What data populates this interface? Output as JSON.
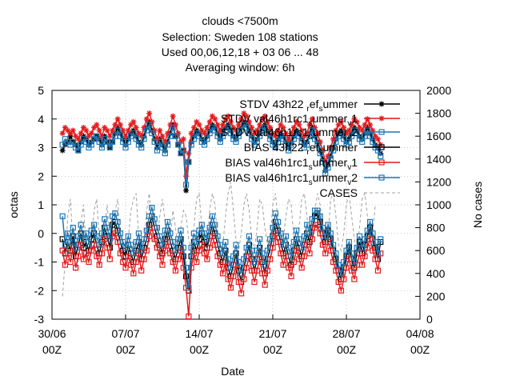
{
  "chart_data": {
    "type": "line",
    "title_lines": [
      "clouds <7500m",
      "Selection: Sweden    108 stations",
      "Used  00,06,12,18  + 03 06 ... 48",
      "Averaging window:  6h"
    ],
    "xlabel": "Date",
    "ylabel": "octas",
    "y2label": "No cases",
    "xlim": [
      "2014-06-30T00",
      "2014-08-04T00"
    ],
    "ylim": [
      -3,
      5
    ],
    "y2lim": [
      0,
      2000
    ],
    "x_ticks": [
      {
        "line1": "30/06",
        "line2": "00Z"
      },
      {
        "line1": "07/07",
        "line2": "00Z"
      },
      {
        "line1": "14/07",
        "line2": "00Z"
      },
      {
        "line1": "21/07",
        "line2": "00Z"
      },
      {
        "line1": "28/07",
        "line2": "00Z"
      },
      {
        "line1": "04/08",
        "line2": "00Z"
      }
    ],
    "y_ticks": [
      "-3",
      "-2",
      "-1",
      "0",
      "1",
      "2",
      "3",
      "4",
      "5"
    ],
    "y2_ticks": [
      "0",
      "200",
      "400",
      "600",
      "800",
      "1000",
      "1200",
      "1400",
      "1600",
      "1800",
      "2000"
    ],
    "grid": true,
    "legend_position": "top-right",
    "x_days": [
      1.0,
      1.25,
      1.5,
      1.75,
      2.0,
      2.25,
      2.5,
      2.75,
      3.0,
      3.25,
      3.5,
      3.75,
      4.0,
      4.25,
      4.5,
      4.75,
      5.0,
      5.25,
      5.5,
      5.75,
      6.0,
      6.25,
      6.5,
      6.75,
      7.0,
      7.25,
      7.5,
      7.75,
      8.0,
      8.25,
      8.5,
      8.75,
      9.0,
      9.25,
      9.5,
      9.75,
      10.0,
      10.25,
      10.5,
      10.75,
      11.0,
      11.25,
      11.5,
      11.75,
      12.0,
      12.25,
      12.5,
      12.75,
      13.0,
      13.25,
      13.5,
      13.75,
      14.0,
      14.25,
      14.5,
      14.75,
      15.0,
      15.25,
      15.5,
      15.75,
      16.0,
      16.25,
      16.5,
      16.75,
      17.0,
      17.25,
      17.5,
      17.75,
      18.0,
      18.25,
      18.5,
      18.75,
      19.0,
      19.25,
      19.5,
      19.75,
      20.0,
      20.25,
      20.5,
      20.75,
      21.0,
      21.25,
      21.5,
      21.75,
      22.0,
      22.25,
      22.5,
      22.75,
      23.0,
      23.25,
      23.5,
      23.75,
      24.0,
      24.25,
      24.5,
      24.75,
      25.0,
      25.25,
      25.5,
      25.75,
      26.0,
      26.25,
      26.5,
      26.75,
      27.0,
      27.25,
      27.5,
      27.75,
      28.0,
      28.25,
      28.5,
      28.75,
      29.0,
      29.25,
      29.5,
      29.75,
      30.0,
      30.25,
      30.5,
      30.75,
      31.0,
      31.25,
      31.5,
      31.75
    ],
    "series": [
      {
        "name": "STDV 43h22 ref_summer",
        "axis": "y1",
        "color": "#000000",
        "marker": "star",
        "dash": false,
        "values": [
          2.9,
          3.1,
          3.2,
          3.4,
          3.2,
          3.1,
          2.9,
          3.2,
          3.4,
          3.3,
          3.1,
          3.2,
          3.3,
          3.4,
          3.3,
          3.1,
          3.4,
          3.2,
          3.0,
          3.2,
          3.5,
          3.7,
          3.5,
          3.3,
          3.1,
          3.3,
          3.5,
          3.6,
          3.4,
          3.2,
          3.1,
          3.4,
          3.7,
          3.9,
          3.6,
          3.3,
          3.0,
          3.3,
          3.1,
          2.9,
          3.2,
          3.5,
          3.8,
          3.4,
          3.1,
          2.8,
          2.9,
          1.5,
          2.5,
          3.2,
          3.4,
          3.6,
          3.5,
          3.3,
          3.2,
          3.4,
          3.6,
          3.8,
          3.7,
          3.5,
          3.3,
          3.5,
          3.7,
          3.8,
          3.6,
          3.4,
          3.3,
          3.5,
          3.7,
          3.9,
          3.8,
          3.6,
          3.4,
          3.2,
          3.3,
          3.5,
          3.7,
          3.8,
          3.6,
          3.4,
          3.2,
          3.1,
          3.3,
          3.5,
          3.4,
          3.2,
          3.0,
          3.2,
          3.4,
          3.6,
          3.5,
          3.3,
          3.1,
          3.2,
          3.5,
          3.7,
          3.4,
          3.2,
          2.9,
          2.6,
          2.2,
          2.4,
          2.7,
          3.0,
          3.3,
          3.5,
          3.6,
          3.4,
          3.2,
          3.3,
          3.5,
          3.7,
          3.6,
          3.4,
          3.3,
          3.5,
          3.7,
          3.5,
          3.3,
          3.1,
          3.0,
          2.8
        ]
      },
      {
        "name": "STDV val46h1rc1_summer_1",
        "axis": "y1",
        "color": "#e41a1c",
        "marker": "star",
        "dash": false,
        "values": [
          3.5,
          3.7,
          3.6,
          3.5,
          3.6,
          3.4,
          3.3,
          3.5,
          3.7,
          3.6,
          3.4,
          3.5,
          3.7,
          3.8,
          3.6,
          3.4,
          3.7,
          3.6,
          3.4,
          3.6,
          3.8,
          4.0,
          3.8,
          3.6,
          3.4,
          3.6,
          3.8,
          3.9,
          3.7,
          3.5,
          3.4,
          3.7,
          4.0,
          4.2,
          3.9,
          3.6,
          3.3,
          3.6,
          3.4,
          3.2,
          3.5,
          3.8,
          4.1,
          3.8,
          3.5,
          3.2,
          3.3,
          2.0,
          2.8,
          3.5,
          3.7,
          3.9,
          3.8,
          3.6,
          3.5,
          3.7,
          3.9,
          4.1,
          4.0,
          3.8,
          3.6,
          3.8,
          4.0,
          4.1,
          3.9,
          3.7,
          3.6,
          3.8,
          4.0,
          4.2,
          4.1,
          3.9,
          3.7,
          3.5,
          3.6,
          3.8,
          4.0,
          4.1,
          3.9,
          3.7,
          3.5,
          3.4,
          3.6,
          3.8,
          3.7,
          3.5,
          3.3,
          3.5,
          3.7,
          3.9,
          3.8,
          3.6,
          3.4,
          3.5,
          3.8,
          4.0,
          3.7,
          3.5,
          3.2,
          2.9,
          2.5,
          2.7,
          3.0,
          3.3,
          3.6,
          3.8,
          3.9,
          3.7,
          3.5,
          3.6,
          3.8,
          4.0,
          3.9,
          3.7,
          3.6,
          3.8,
          4.0,
          3.8,
          3.6,
          3.4,
          3.3,
          3.1
        ]
      },
      {
        "name": "STDV val46h1rc1_summer_2",
        "axis": "y1",
        "color": "#1f77b4",
        "marker": "square",
        "dash": false,
        "values": [
          3.1,
          3.3,
          3.2,
          3.1,
          3.2,
          3.0,
          2.9,
          3.1,
          3.3,
          3.2,
          3.0,
          3.1,
          3.3,
          3.4,
          3.2,
          3.0,
          3.3,
          3.2,
          3.0,
          3.2,
          3.4,
          3.6,
          3.4,
          3.2,
          3.0,
          3.2,
          3.4,
          3.5,
          3.3,
          3.1,
          3.0,
          3.3,
          3.6,
          3.8,
          3.5,
          3.2,
          2.9,
          3.2,
          3.0,
          2.8,
          3.1,
          3.4,
          3.7,
          3.4,
          3.1,
          2.8,
          2.9,
          1.7,
          2.5,
          3.1,
          3.3,
          3.5,
          3.4,
          3.2,
          3.1,
          3.3,
          3.5,
          3.7,
          3.6,
          3.4,
          3.2,
          3.4,
          3.6,
          3.7,
          3.5,
          3.3,
          3.2,
          3.4,
          3.6,
          3.8,
          3.7,
          3.5,
          3.3,
          3.1,
          3.2,
          3.4,
          3.6,
          3.7,
          3.5,
          3.3,
          3.1,
          3.0,
          3.2,
          3.4,
          3.3,
          3.1,
          2.9,
          3.1,
          3.3,
          3.5,
          3.4,
          3.2,
          3.0,
          3.1,
          3.4,
          3.6,
          3.3,
          3.1,
          2.8,
          2.5,
          2.1,
          2.3,
          2.6,
          2.9,
          3.2,
          3.4,
          3.5,
          3.3,
          3.1,
          3.2,
          3.4,
          3.6,
          3.5,
          3.3,
          3.2,
          3.4,
          3.6,
          3.4,
          3.2,
          3.0,
          2.9,
          2.7
        ]
      },
      {
        "name": "BIAS 43h22 ref_summer",
        "axis": "y1",
        "color": "#000000",
        "marker": "square",
        "dash": false,
        "values": [
          -0.2,
          -0.7,
          -0.3,
          -0.6,
          -0.1,
          -0.8,
          -0.4,
          0.0,
          -0.5,
          -0.3,
          -0.6,
          -0.2,
          0.0,
          -0.4,
          -0.7,
          -0.3,
          0.2,
          -0.1,
          -0.5,
          0.3,
          0.4,
          0.1,
          -0.3,
          -0.6,
          -0.8,
          -0.4,
          -0.7,
          -1.0,
          -0.6,
          -0.3,
          -0.9,
          -0.5,
          -0.2,
          0.3,
          0.6,
          0.2,
          -0.1,
          -0.4,
          -0.7,
          -0.2,
          0.1,
          -0.3,
          -0.6,
          -0.9,
          -0.5,
          -0.2,
          -0.8,
          -1.5,
          -2.0,
          -0.8,
          -0.3,
          -0.6,
          -0.2,
          0.0,
          -0.3,
          -0.5,
          -0.1,
          0.3,
          0.0,
          -0.4,
          -0.7,
          -1.0,
          -0.6,
          -1.2,
          -1.5,
          -1.1,
          -0.7,
          -1.3,
          -1.7,
          -1.2,
          -0.8,
          -0.4,
          -0.9,
          -1.3,
          -0.9,
          -0.5,
          -1.0,
          -1.4,
          -0.9,
          -0.5,
          -0.1,
          0.4,
          0.1,
          -0.3,
          -0.7,
          -0.4,
          -0.8,
          -1.1,
          -0.6,
          -0.2,
          -0.5,
          -0.8,
          -0.4,
          0.0,
          -0.3,
          0.2,
          0.6,
          0.7,
          0.4,
          0.0,
          -0.3,
          0.1,
          -0.2,
          -0.6,
          -0.9,
          -1.3,
          -1.6,
          -1.2,
          -0.8,
          -0.5,
          -0.9,
          -1.2,
          -0.7,
          -0.3,
          -0.7,
          -0.4,
          -0.1,
          0.2,
          -0.2,
          -0.5,
          -0.9,
          -0.3
        ]
      },
      {
        "name": "BIAS val46h1rc1_summer_1",
        "axis": "y1",
        "color": "#e41a1c",
        "marker": "square",
        "dash": false,
        "values": [
          -0.6,
          -1.1,
          -0.7,
          -1.0,
          -0.5,
          -1.2,
          -0.8,
          -0.4,
          -0.9,
          -0.7,
          -1.0,
          -0.6,
          -0.4,
          -0.8,
          -1.1,
          -0.7,
          -0.2,
          -0.5,
          -0.9,
          -0.1,
          0.0,
          -0.3,
          -0.7,
          -1.0,
          -1.2,
          -0.8,
          -1.1,
          -1.4,
          -1.0,
          -0.7,
          -1.3,
          -0.9,
          -0.6,
          -0.1,
          0.2,
          -0.2,
          -0.5,
          -0.8,
          -1.1,
          -0.6,
          -0.3,
          -0.7,
          -1.0,
          -1.3,
          -0.9,
          -0.6,
          -1.2,
          -1.9,
          -2.9,
          -1.2,
          -0.7,
          -1.0,
          -0.6,
          -0.4,
          -0.7,
          -0.9,
          -0.5,
          -0.1,
          -0.4,
          -0.8,
          -1.1,
          -1.4,
          -1.0,
          -1.6,
          -1.9,
          -1.5,
          -1.1,
          -1.7,
          -2.1,
          -1.6,
          -1.2,
          -0.8,
          -1.3,
          -1.7,
          -1.3,
          -0.9,
          -1.4,
          -1.8,
          -1.3,
          -0.9,
          -0.5,
          0.0,
          -0.3,
          -0.7,
          -1.1,
          -0.8,
          -1.2,
          -1.5,
          -1.0,
          -0.6,
          -0.9,
          -1.2,
          -0.8,
          -0.4,
          -0.7,
          -0.2,
          0.2,
          0.3,
          0.0,
          -0.4,
          -0.7,
          -0.3,
          -0.6,
          -1.0,
          -1.3,
          -1.7,
          -2.0,
          -1.6,
          -1.2,
          -0.9,
          -1.3,
          -1.6,
          -1.1,
          -0.7,
          -1.1,
          -0.8,
          -0.5,
          -0.2,
          -0.6,
          -0.9,
          -1.3,
          -0.7
        ]
      },
      {
        "name": "BIAS val46h1rc1_summer_2",
        "axis": "y1",
        "color": "#1f77b4",
        "marker": "square",
        "dash": false,
        "values": [
          0.6,
          -0.4,
          0.0,
          -0.3,
          0.2,
          -0.5,
          -0.1,
          0.3,
          -0.2,
          0.0,
          -0.3,
          0.1,
          0.3,
          -0.1,
          -0.4,
          0.0,
          0.5,
          0.2,
          -0.2,
          0.6,
          0.7,
          0.4,
          0.0,
          -0.3,
          -0.5,
          -0.1,
          -0.4,
          -0.7,
          -0.3,
          0.0,
          -0.6,
          -0.2,
          0.1,
          0.6,
          0.9,
          0.5,
          0.2,
          -0.1,
          -0.4,
          0.1,
          0.4,
          0.0,
          -0.3,
          -0.6,
          -0.2,
          0.1,
          -0.5,
          -1.2,
          -1.9,
          -0.5,
          0.0,
          -0.3,
          0.1,
          0.3,
          0.0,
          -0.2,
          0.2,
          0.6,
          0.3,
          -0.1,
          -0.4,
          -0.7,
          -0.3,
          -0.9,
          -1.2,
          -0.8,
          -0.4,
          -1.0,
          -1.4,
          -0.9,
          -0.5,
          -0.1,
          -0.6,
          -1.0,
          -0.6,
          -0.2,
          -0.7,
          -1.1,
          -0.6,
          -0.2,
          0.2,
          0.7,
          0.4,
          0.0,
          -0.4,
          -0.1,
          -0.5,
          -0.8,
          -0.3,
          0.1,
          -0.2,
          -0.5,
          -0.1,
          0.3,
          0.0,
          0.5,
          0.8,
          0.8,
          0.6,
          0.2,
          -0.1,
          0.3,
          0.0,
          -0.4,
          -0.7,
          -1.1,
          -1.4,
          -1.0,
          -0.6,
          -0.3,
          -0.7,
          -1.0,
          -0.5,
          -0.1,
          -0.5,
          -0.2,
          0.1,
          0.4,
          0.0,
          -0.3,
          -0.7,
          -0.2
        ]
      },
      {
        "name": "CASES",
        "axis": "y2",
        "color": "#a0a0a0",
        "marker": "none",
        "dash": true,
        "values": [
          200,
          500,
          900,
          1050,
          650,
          420,
          500,
          850,
          1000,
          600,
          500,
          680,
          950,
          1050,
          700,
          560,
          800,
          1000,
          700,
          600,
          950,
          1050,
          700,
          550,
          480,
          700,
          950,
          1050,
          1100,
          720,
          600,
          680,
          950,
          1100,
          800,
          600,
          700,
          900,
          1050,
          850,
          600,
          700,
          950,
          800,
          600,
          800,
          950,
          900,
          700,
          600,
          800,
          1050,
          1100,
          800,
          600,
          700,
          950,
          1100,
          1000,
          700,
          550,
          650,
          900,
          1100,
          1200,
          950,
          700,
          600,
          750,
          1000,
          1100,
          950,
          700,
          600,
          800,
          1050,
          1000,
          800,
          650,
          700,
          1000,
          1100,
          850,
          650,
          700,
          900,
          1050,
          1000,
          700,
          600,
          800,
          1050,
          1100,
          900,
          650,
          700,
          950,
          1100,
          1000,
          800,
          650,
          700,
          1050,
          1100,
          900,
          650,
          600,
          750,
          1000,
          1100,
          900,
          700,
          600,
          800,
          1050,
          1100,
          900,
          700,
          750,
          1000
        ]
      }
    ]
  },
  "legend": [
    {
      "text": "STDV 43h22 ",
      "sub1": "r",
      "mid": "ef",
      "sub2": "s",
      "tail": "ummer"
    },
    {
      "text": "STDV val46h1rc1",
      "sub1": "s",
      "mid": "ummer",
      "sub2": "v",
      "tail": "1"
    },
    {
      "text": "STDV val46h1rc1",
      "sub1": "s",
      "mid": "ummer",
      "sub2": "v",
      "tail": "2"
    },
    {
      "text": "BIAS 43h22 ",
      "sub1": "r",
      "mid": "ef",
      "sub2": "s",
      "tail": "ummer"
    },
    {
      "text": "BIAS val46h1rc1",
      "sub1": "s",
      "mid": "ummer",
      "sub2": "v",
      "tail": "1"
    },
    {
      "text": "BIAS val46h1rc1",
      "sub1": "s",
      "mid": "ummer",
      "sub2": "v",
      "tail": "2"
    },
    {
      "text": "CASES",
      "sub1": "",
      "mid": "",
      "sub2": "",
      "tail": ""
    }
  ]
}
